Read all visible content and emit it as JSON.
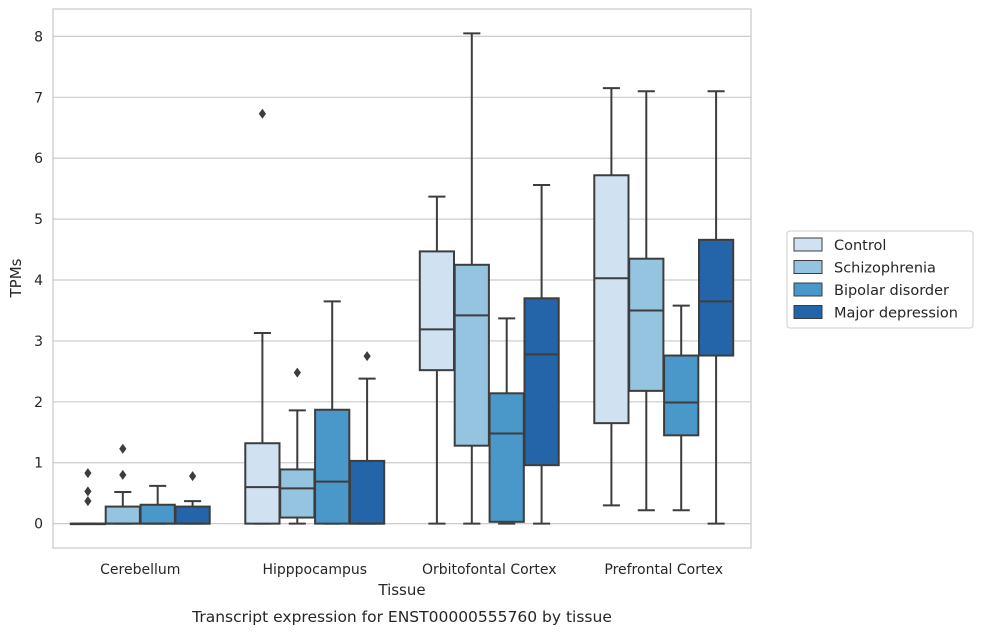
{
  "chart_data": {
    "type": "box",
    "title": "",
    "caption": "Transcript expression for ENST00000555760 by tissue",
    "xlabel": "Tissue",
    "ylabel": "TPMs",
    "ylim": [
      -0.4,
      8.45
    ],
    "yticks": [
      0,
      1,
      2,
      3,
      4,
      5,
      6,
      7,
      8
    ],
    "ytick_labels": [
      "0",
      "1",
      "2",
      "3",
      "4",
      "5",
      "6",
      "7",
      "8"
    ],
    "categories": [
      "Cerebellum",
      "Hipppocampus",
      "Orbitofontal Cortex",
      "Prefrontal Cortex"
    ],
    "grid": "horizontal",
    "legend_position": "right",
    "series": [
      {
        "name": "Control",
        "color": "#d0e1f2",
        "boxes": [
          {
            "whislo": 0,
            "q1": 0,
            "med": 0,
            "q3": 0,
            "whishi": 0,
            "fliers": [
              0.37,
              0.53,
              0.83
            ]
          },
          {
            "whislo": 0,
            "q1": 0,
            "med": 0.6,
            "q3": 1.32,
            "whishi": 3.13,
            "fliers": [
              6.73
            ]
          },
          {
            "whislo": 0,
            "q1": 2.52,
            "med": 3.19,
            "q3": 4.47,
            "whishi": 5.37,
            "fliers": []
          },
          {
            "whislo": 0.3,
            "q1": 1.65,
            "med": 4.03,
            "q3": 5.72,
            "whishi": 7.15,
            "fliers": []
          }
        ]
      },
      {
        "name": "Schizophrenia",
        "color": "#94c4df",
        "boxes": [
          {
            "whislo": 0,
            "q1": 0,
            "med": 0,
            "q3": 0.28,
            "whishi": 0.52,
            "fliers": [
              0.8,
              1.23
            ]
          },
          {
            "whislo": 0,
            "q1": 0.1,
            "med": 0.58,
            "q3": 0.89,
            "whishi": 1.86,
            "fliers": [
              2.48
            ]
          },
          {
            "whislo": 0,
            "q1": 1.28,
            "med": 3.42,
            "q3": 4.25,
            "whishi": 8.05,
            "fliers": []
          },
          {
            "whislo": 0.22,
            "q1": 2.18,
            "med": 3.5,
            "q3": 4.35,
            "whishi": 7.1,
            "fliers": []
          }
        ]
      },
      {
        "name": "Bipolar disorder",
        "color": "#4a98c9",
        "boxes": [
          {
            "whislo": 0,
            "q1": 0,
            "med": 0,
            "q3": 0.31,
            "whishi": 0.62,
            "fliers": []
          },
          {
            "whislo": 0,
            "q1": 0,
            "med": 0.69,
            "q3": 1.87,
            "whishi": 3.65,
            "fliers": []
          },
          {
            "whislo": 0,
            "q1": 0.03,
            "med": 1.48,
            "q3": 2.14,
            "whishi": 3.37,
            "fliers": []
          },
          {
            "whislo": 0.22,
            "q1": 1.45,
            "med": 1.99,
            "q3": 2.76,
            "whishi": 3.58,
            "fliers": []
          }
        ]
      },
      {
        "name": "Major depression",
        "color": "#2464a8",
        "boxes": [
          {
            "whislo": 0,
            "q1": 0,
            "med": 0,
            "q3": 0.28,
            "whishi": 0.37,
            "fliers": [
              0.78
            ]
          },
          {
            "whislo": 0,
            "q1": 0,
            "med": 0,
            "q3": 1.03,
            "whishi": 2.38,
            "fliers": [
              2.75
            ]
          },
          {
            "whislo": 0,
            "q1": 0.96,
            "med": 2.78,
            "q3": 3.7,
            "whishi": 5.56,
            "fliers": []
          },
          {
            "whislo": 0,
            "q1": 2.76,
            "med": 3.65,
            "q3": 4.66,
            "whishi": 7.1,
            "fliers": []
          }
        ]
      }
    ]
  }
}
